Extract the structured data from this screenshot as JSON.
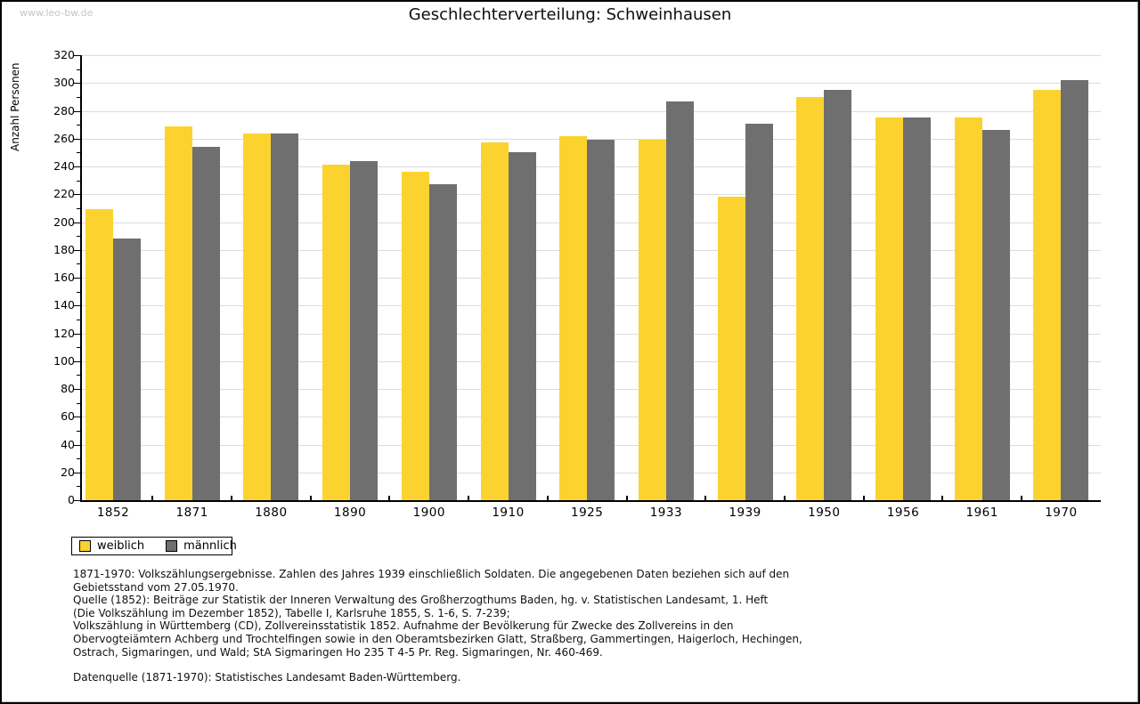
{
  "watermark": "www.leo-bw.de",
  "chart_data": {
    "type": "bar",
    "title": "Geschlechterverteilung: Schweinhausen",
    "xlabel": "",
    "ylabel": "Anzahl Personen",
    "ylim": [
      0,
      320
    ],
    "ytick_step": 20,
    "ytick_minor_step": 10,
    "grid": true,
    "legend_position": "bottom-left",
    "categories": [
      "1852",
      "1871",
      "1880",
      "1890",
      "1900",
      "1910",
      "1925",
      "1933",
      "1939",
      "1950",
      "1956",
      "1961",
      "1970"
    ],
    "series": [
      {
        "name": "weiblich",
        "color": "#FCD32E",
        "values": [
          209,
          269,
          264,
          241,
          236,
          257,
          262,
          259,
          218,
          290,
          275,
          275,
          295
        ]
      },
      {
        "name": "männlich",
        "color": "#6F6F6F",
        "values": [
          188,
          254,
          264,
          244,
          227,
          250,
          259,
          287,
          271,
          295,
          275,
          266,
          302
        ]
      }
    ]
  },
  "footer": {
    "lines": [
      "1871-1970: Volkszählungsergebnisse. Zahlen des Jahres 1939 einschließlich Soldaten. Die angegebenen Daten beziehen sich auf den",
      "Gebietsstand vom 27.05.1970.",
      "Quelle (1852): Beiträge zur Statistik der Inneren Verwaltung des Großherzogthums Baden, hg. v. Statistischen Landesamt, 1. Heft",
      "(Die Volkszählung im Dezember 1852), Tabelle I, Karlsruhe 1855, S. 1-6, S. 7-239;",
      "Volkszählung in Württemberg (CD), Zollvereinsstatistik 1852. Aufnahme der Bevölkerung für Zwecke des Zollvereins in den",
      "Obervogteiämtern Achberg und Trochtelfingen sowie in den Oberamtsbezirken Glatt, Straßberg, Gammertingen, Haigerloch, Hechingen,",
      "Ostrach, Sigmaringen, und Wald; StA Sigmaringen Ho 235 T 4-5 Pr. Reg. Sigmaringen, Nr. 460-469."
    ],
    "datasource": "Datenquelle (1871-1970): Statistisches Landesamt Baden-Württemberg."
  },
  "colors": {
    "weiblich": "#FCD32E",
    "maennlich": "#6F6F6F",
    "gridline": "#DCDCDC",
    "axis": "#000000",
    "watermark": "#C6C6C6",
    "frame_border": "#000000",
    "background": "#FFFFFF"
  }
}
